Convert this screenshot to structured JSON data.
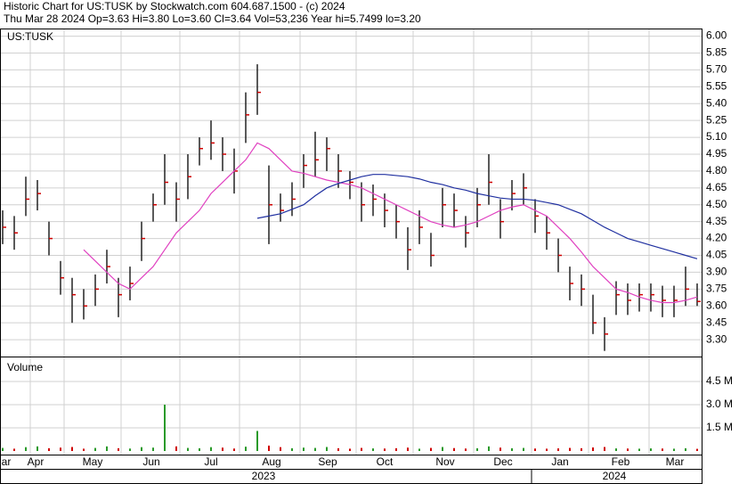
{
  "chart_data": {
    "type": "ohlc",
    "title": "Historic Chart for US:TUSK by Stockwatch.com 604.687.1500 - (c) 2024",
    "subtitle": "Thu Mar 28 2024  Op=3.63  Hi=3.80  Lo=3.60  Cl=3.64  Vol=53,236  Year hi=5.7499  lo=3.20",
    "symbol": "US:TUSK",
    "volume_label": "Volume",
    "months": [
      "Mar",
      "Apr",
      "May",
      "Jun",
      "Jul",
      "Aug",
      "Sep",
      "Oct",
      "Nov",
      "Dec",
      "Jan",
      "Feb",
      "Mar"
    ],
    "years": [
      "2023",
      "2024"
    ],
    "high": [
      4.45,
      4.4,
      4.75,
      4.72,
      4.35,
      4.0,
      3.85,
      3.75,
      3.88,
      4.1,
      3.85,
      3.95,
      4.35,
      4.6,
      4.95,
      4.7,
      4.95,
      5.1,
      5.25,
      5.1,
      5.0,
      5.5,
      5.75,
      4.85,
      4.6,
      4.7,
      4.95,
      5.15,
      5.1,
      4.95,
      4.8,
      4.7,
      4.68,
      4.6,
      4.5,
      4.3,
      4.45,
      4.25,
      4.65,
      4.6,
      4.4,
      4.65,
      4.95,
      4.55,
      4.72,
      4.78,
      4.55,
      4.4,
      4.2,
      3.95,
      3.88,
      3.7,
      3.5,
      3.82,
      3.8,
      3.8,
      3.8,
      3.78,
      3.78,
      3.95,
      3.8
    ],
    "low": [
      4.15,
      4.1,
      4.4,
      4.45,
      4.05,
      3.7,
      3.45,
      3.48,
      3.6,
      3.8,
      3.5,
      3.65,
      4.0,
      4.35,
      4.5,
      4.35,
      4.55,
      4.85,
      4.9,
      4.8,
      4.6,
      5.05,
      5.3,
      4.15,
      4.35,
      4.4,
      4.65,
      4.75,
      4.8,
      4.65,
      4.55,
      4.35,
      4.4,
      4.3,
      4.2,
      3.92,
      4.15,
      3.95,
      4.3,
      4.3,
      4.12,
      4.3,
      4.5,
      4.2,
      4.45,
      4.5,
      4.25,
      4.1,
      3.9,
      3.65,
      3.6,
      3.35,
      3.2,
      3.52,
      3.52,
      3.55,
      3.55,
      3.5,
      3.5,
      3.6,
      3.6
    ],
    "close": [
      4.3,
      4.25,
      4.55,
      4.6,
      4.2,
      3.85,
      3.7,
      3.6,
      3.75,
      3.95,
      3.7,
      3.8,
      4.2,
      4.5,
      4.7,
      4.55,
      4.75,
      5.0,
      5.05,
      4.95,
      4.8,
      5.3,
      5.5,
      4.5,
      4.45,
      4.55,
      4.85,
      4.9,
      5.0,
      4.8,
      4.7,
      4.5,
      4.55,
      4.45,
      4.35,
      4.1,
      4.3,
      4.05,
      4.5,
      4.45,
      4.25,
      4.5,
      4.7,
      4.35,
      4.6,
      4.65,
      4.4,
      4.25,
      4.05,
      3.8,
      3.75,
      3.45,
      3.35,
      3.7,
      3.65,
      3.7,
      3.7,
      3.65,
      3.65,
      3.75,
      3.64
    ],
    "ma_short": {
      "color": "#e040c0",
      "values": [
        null,
        null,
        null,
        null,
        null,
        null,
        null,
        4.1,
        4.0,
        3.9,
        3.8,
        3.75,
        3.85,
        3.95,
        4.1,
        4.25,
        4.35,
        4.45,
        4.6,
        4.7,
        4.8,
        4.9,
        5.05,
        5.0,
        4.9,
        4.8,
        4.78,
        4.75,
        4.72,
        4.7,
        4.68,
        4.65,
        4.6,
        4.55,
        4.5,
        4.45,
        4.4,
        4.35,
        4.32,
        4.3,
        4.32,
        4.35,
        4.4,
        4.45,
        4.48,
        4.5,
        4.45,
        4.4,
        4.3,
        4.2,
        4.08,
        3.95,
        3.85,
        3.75,
        3.72,
        3.68,
        3.65,
        3.63,
        3.63,
        3.65,
        3.68
      ]
    },
    "ma_long": {
      "color": "#2030a0",
      "values": [
        null,
        null,
        null,
        null,
        null,
        null,
        null,
        null,
        null,
        null,
        null,
        null,
        null,
        null,
        null,
        null,
        null,
        null,
        null,
        null,
        null,
        null,
        4.38,
        4.4,
        4.42,
        4.46,
        4.5,
        4.58,
        4.65,
        4.69,
        4.72,
        4.75,
        4.77,
        4.77,
        4.76,
        4.75,
        4.73,
        4.7,
        4.68,
        4.65,
        4.63,
        4.6,
        4.58,
        4.56,
        4.55,
        4.55,
        4.54,
        4.52,
        4.5,
        4.46,
        4.42,
        4.36,
        4.3,
        4.25,
        4.2,
        4.17,
        4.14,
        4.11,
        4.08,
        4.05,
        4.02
      ]
    },
    "volume": [
      200000,
      150000,
      250000,
      300000,
      180000,
      220000,
      260000,
      150000,
      200000,
      300000,
      180000,
      160000,
      250000,
      220000,
      3000000,
      300000,
      200000,
      180000,
      250000,
      220000,
      160000,
      280000,
      1300000,
      350000,
      250000,
      180000,
      220000,
      200000,
      260000,
      180000,
      150000,
      200000,
      170000,
      160000,
      180000,
      220000,
      150000,
      200000,
      260000,
      190000,
      160000,
      180000,
      300000,
      220000,
      180000,
      200000,
      160000,
      150000,
      170000,
      200000,
      180000,
      230000,
      260000,
      170000,
      160000,
      150000,
      170000,
      160000,
      150000,
      180000,
      140000
    ],
    "ylim": [
      3.15,
      6.06
    ],
    "yticks": [
      {
        "value": 3.3,
        "label": "3.30"
      },
      {
        "value": 3.45,
        "label": "3.45"
      },
      {
        "value": 3.6,
        "label": "3.60"
      },
      {
        "value": 3.75,
        "label": "3.75"
      },
      {
        "value": 3.9,
        "label": "3.90"
      },
      {
        "value": 4.05,
        "label": "4.05"
      },
      {
        "value": 4.2,
        "label": "4.20"
      },
      {
        "value": 4.35,
        "label": "4.35"
      },
      {
        "value": 4.5,
        "label": "4.50"
      },
      {
        "value": 4.65,
        "label": "4.65"
      },
      {
        "value": 4.8,
        "label": "4.80"
      },
      {
        "value": 4.95,
        "label": "4.95"
      },
      {
        "value": 5.1,
        "label": "5.10"
      },
      {
        "value": 5.25,
        "label": "5.25"
      },
      {
        "value": 5.4,
        "label": "5.40"
      },
      {
        "value": 5.55,
        "label": "5.55"
      },
      {
        "value": 5.7,
        "label": "5.70"
      },
      {
        "value": 5.85,
        "label": "5.85"
      },
      {
        "value": 6.0,
        "label": "6.00"
      }
    ],
    "y2lim": [
      0,
      6000000
    ],
    "y2ticks": [
      {
        "value": 1500000,
        "label": "1.5 M"
      },
      {
        "value": 3000000,
        "label": "3.0 M"
      },
      {
        "value": 4500000,
        "label": "4.5 M"
      }
    ],
    "grid": true
  }
}
